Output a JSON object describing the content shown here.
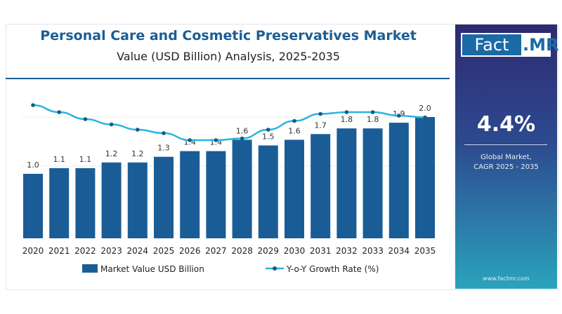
{
  "header": {
    "title": "Personal Care and Cosmetic Preservatives Market",
    "subtitle": "Value (USD Billion) Analysis, 2025-2035"
  },
  "sidebar": {
    "logo_text": "Fact.MR",
    "logo_part1": "Fact",
    "logo_part2": ".MR",
    "cagr": "4.4%",
    "cagr_label_line1": "Global Market,",
    "cagr_label_line2": "CAGR 2025 - 2035",
    "website": "www.factmr.com"
  },
  "colors": {
    "bar": "#1a5d96",
    "line": "#29b4e0",
    "title": "#1a5d96",
    "panel_top": "#2e2a72",
    "panel_bottom": "#2aa3bd"
  },
  "chart_data": {
    "type": "bar+line",
    "categories": [
      "2020",
      "2021",
      "2022",
      "2023",
      "2024",
      "2025",
      "2026",
      "2027",
      "2028",
      "2029",
      "2030",
      "2031",
      "2032",
      "2033",
      "2034",
      "2035"
    ],
    "series": [
      {
        "name": "Market Value USD Billion",
        "type": "bar",
        "values": [
          1.0,
          1.1,
          1.1,
          1.2,
          1.2,
          1.3,
          1.4,
          1.4,
          1.6,
          1.5,
          1.6,
          1.7,
          1.8,
          1.8,
          1.9,
          2.0
        ],
        "labels": [
          "1.0",
          "1.1",
          "1.1",
          "1.2",
          "1.2",
          "1.3",
          "1.4",
          "1.4",
          "1.6",
          "1.5",
          "1.6",
          "1.7",
          "1.8",
          "1.8",
          "1.9",
          "2.0"
        ]
      },
      {
        "name": "Y-o-Y Growth Rate (%)",
        "type": "line",
        "values": [
          5.5,
          5.1,
          4.7,
          4.4,
          4.1,
          3.9,
          3.5,
          3.5,
          3.6,
          4.1,
          4.6,
          5.0,
          5.1,
          5.1,
          4.9,
          4.8
        ]
      }
    ],
    "grid": true,
    "legend": "bottom"
  }
}
